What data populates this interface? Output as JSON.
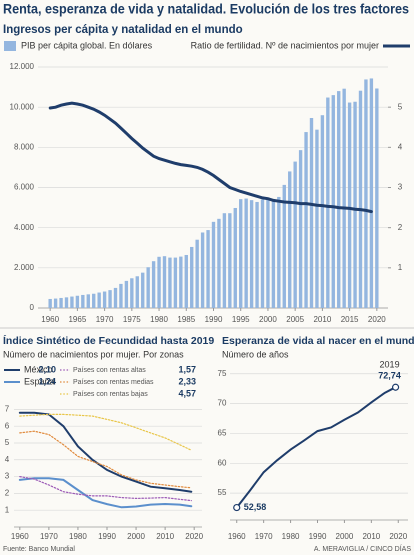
{
  "title": "Renta, esperanza de vida y natalidad. Evolución de los tres factores",
  "source": "Fuente: Banco Mundial",
  "credit": "A. MERAVIGLIA / CINCO DÍAS",
  "chart_data": [
    {
      "type": "combo",
      "title": "Ingresos per cápita y natalidad en el mundo",
      "x": [
        1960,
        1961,
        1962,
        1963,
        1964,
        1965,
        1966,
        1967,
        1968,
        1969,
        1970,
        1971,
        1972,
        1973,
        1974,
        1975,
        1976,
        1977,
        1978,
        1979,
        1980,
        1981,
        1982,
        1983,
        1984,
        1985,
        1986,
        1987,
        1988,
        1989,
        1990,
        1991,
        1992,
        1993,
        1994,
        1995,
        1996,
        1997,
        1998,
        1999,
        2000,
        2001,
        2002,
        2003,
        2004,
        2005,
        2006,
        2007,
        2008,
        2009,
        2010,
        2011,
        2012,
        2013,
        2014,
        2015,
        2016,
        2017,
        2018,
        2019,
        2020
      ],
      "series": [
        {
          "name": "PIB per cápita global. En dólares",
          "type": "bar",
          "color": "#94b6df",
          "values": [
            450,
            470,
            500,
            530,
            570,
            610,
            650,
            680,
            710,
            770,
            820,
            890,
            1000,
            1200,
            1350,
            1480,
            1580,
            1760,
            2030,
            2330,
            2550,
            2580,
            2510,
            2510,
            2560,
            2640,
            3040,
            3400,
            3760,
            3880,
            4290,
            4440,
            4720,
            4720,
            4980,
            5420,
            5450,
            5370,
            5280,
            5400,
            5500,
            5380,
            5530,
            6130,
            6800,
            7290,
            7860,
            8760,
            9460,
            8880,
            9600,
            10480,
            10600,
            10800,
            10920,
            10230,
            10270,
            10820,
            11380,
            11430,
            10930
          ]
        },
        {
          "name": "Ratio de fertilidad. Nº de nacimientos por mujer",
          "type": "line",
          "axis": "y2",
          "color": "#1f3d6b",
          "values": [
            4.98,
            5.0,
            5.05,
            5.08,
            5.1,
            5.08,
            5.05,
            5.0,
            4.95,
            4.88,
            4.8,
            4.7,
            4.6,
            4.48,
            4.35,
            4.22,
            4.1,
            3.98,
            3.88,
            3.78,
            3.72,
            3.68,
            3.64,
            3.6,
            3.57,
            3.55,
            3.53,
            3.5,
            3.45,
            3.38,
            3.3,
            3.2,
            3.1,
            3.0,
            2.95,
            2.9,
            2.86,
            2.82,
            2.78,
            2.74,
            2.72,
            2.68,
            2.66,
            2.64,
            2.63,
            2.62,
            2.6,
            2.6,
            2.58,
            2.56,
            2.55,
            2.53,
            2.52,
            2.5,
            2.49,
            2.48,
            2.46,
            2.45,
            2.43,
            2.4,
            null
          ]
        }
      ],
      "xlim": [
        1958.5,
        2021.5
      ],
      "xticks": [
        1960,
        1965,
        1970,
        1975,
        1980,
        1985,
        1990,
        1995,
        2000,
        2005,
        2010,
        2015,
        2020
      ],
      "ylim": [
        0,
        12000
      ],
      "yticks": [
        0,
        {
          "value": 2000,
          "label": "2.000"
        },
        {
          "value": 4000,
          "label": "4.000"
        },
        {
          "value": 6000,
          "label": "6.000"
        },
        {
          "value": 8000,
          "label": "8.000"
        },
        {
          "value": 10000,
          "label": "10.000"
        },
        {
          "value": 12000,
          "label": "12.000"
        }
      ],
      "y2lim": [
        0,
        6
      ],
      "y2ticks": [
        1,
        2,
        3,
        4,
        5
      ],
      "grid": true
    },
    {
      "type": "line",
      "title": "Índice Sintético de Fecundidad hasta 2019",
      "subtitle": "Número de nacimientos por mujer. Por zonas",
      "x": [
        1960,
        1965,
        1970,
        1975,
        1980,
        1985,
        1990,
        1995,
        2000,
        2005,
        2010,
        2015,
        2019
      ],
      "series": [
        {
          "name": "México",
          "color": "#1f3d6b",
          "style": "solid",
          "values": [
            6.8,
            6.8,
            6.7,
            6.0,
            4.8,
            4.0,
            3.4,
            3.0,
            2.7,
            2.4,
            2.3,
            2.2,
            2.1
          ],
          "value_labels": [
            null,
            null,
            null,
            null,
            null,
            null,
            null,
            null,
            null,
            null,
            null,
            null,
            "2,10"
          ]
        },
        {
          "name": "España",
          "color": "#5b8fcc",
          "style": "solid",
          "values": [
            2.8,
            2.9,
            2.9,
            2.8,
            2.2,
            1.6,
            1.36,
            1.17,
            1.22,
            1.33,
            1.37,
            1.33,
            1.24
          ],
          "value_labels": [
            null,
            null,
            null,
            null,
            null,
            null,
            null,
            null,
            null,
            null,
            null,
            null,
            "1,24"
          ]
        },
        {
          "name": "Países con rentas altas",
          "color": "#9b59b6",
          "style": "dotted",
          "values": [
            3.0,
            2.85,
            2.5,
            2.1,
            1.95,
            1.85,
            1.85,
            1.75,
            1.7,
            1.72,
            1.75,
            1.65,
            1.57
          ],
          "value_labels": [
            null,
            null,
            null,
            null,
            null,
            null,
            null,
            null,
            null,
            null,
            null,
            null,
            "1,57"
          ]
        },
        {
          "name": "Países con rentas medias",
          "color": "#e08a3c",
          "style": "dotted",
          "values": [
            5.6,
            5.7,
            5.5,
            4.9,
            4.2,
            3.9,
            3.6,
            3.1,
            2.8,
            2.6,
            2.5,
            2.4,
            2.33
          ],
          "value_labels": [
            null,
            null,
            null,
            null,
            null,
            null,
            null,
            null,
            null,
            null,
            null,
            null,
            "2,33"
          ]
        },
        {
          "name": "Países con rentas bajas",
          "color": "#e8c547",
          "style": "dotted",
          "values": [
            6.6,
            6.65,
            6.7,
            6.7,
            6.65,
            6.6,
            6.4,
            6.2,
            5.9,
            5.6,
            5.3,
            4.9,
            4.57
          ],
          "value_labels": [
            null,
            null,
            null,
            null,
            null,
            null,
            null,
            null,
            null,
            null,
            null,
            null,
            "4,57"
          ]
        }
      ],
      "xlim": [
        1958,
        2022
      ],
      "xticks": [
        1960,
        1970,
        1980,
        1990,
        2000,
        2010,
        2020
      ],
      "ylim": [
        0,
        7.2
      ],
      "yticks": [
        1,
        2,
        3,
        4,
        5,
        6,
        7
      ],
      "grid": true
    },
    {
      "type": "line",
      "title": "Esperanza de vida al nacer en el mundo",
      "subtitle": "Número de años",
      "x": [
        1960,
        1965,
        1970,
        1975,
        1980,
        1985,
        1990,
        1995,
        2000,
        2005,
        2010,
        2015,
        2019
      ],
      "series": [
        {
          "color": "#1f3d6b",
          "style": "solid",
          "values": [
            52.58,
            55.5,
            58.5,
            60.5,
            62.3,
            63.8,
            65.4,
            66.0,
            67.3,
            68.5,
            70.2,
            71.8,
            72.74
          ],
          "value_labels": [
            "52,58",
            null,
            null,
            null,
            null,
            null,
            null,
            null,
            null,
            null,
            null,
            null,
            "72,74"
          ]
        }
      ],
      "xlim": [
        1957.5,
        2022.5
      ],
      "xticks": [
        1960,
        1970,
        1980,
        1990,
        2000,
        2010,
        2020
      ],
      "ylim": [
        50.5,
        76.8
      ],
      "yticks": [
        55,
        60,
        65,
        70,
        75
      ],
      "grid": true
    }
  ]
}
